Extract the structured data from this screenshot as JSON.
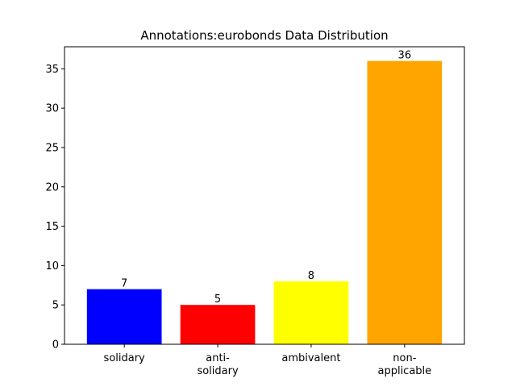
{
  "chart_data": {
    "type": "bar",
    "title": "Annotations:eurobonds Data Distribution",
    "xlabel": "",
    "ylabel": "",
    "categories": [
      [
        "solidary"
      ],
      [
        "anti-",
        "solidary"
      ],
      [
        "ambivalent"
      ],
      [
        "non-",
        "applicable"
      ]
    ],
    "values": [
      7,
      5,
      8,
      36
    ],
    "colors": [
      "#0000ff",
      "#ff0000",
      "#ffff00",
      "#ffa500"
    ],
    "data_labels": [
      "7",
      "5",
      "8",
      "36"
    ],
    "ylim": [
      0,
      37.8
    ],
    "yticks": [
      0,
      5,
      10,
      15,
      20,
      25,
      30,
      35
    ],
    "grid": false,
    "legend": "none"
  }
}
